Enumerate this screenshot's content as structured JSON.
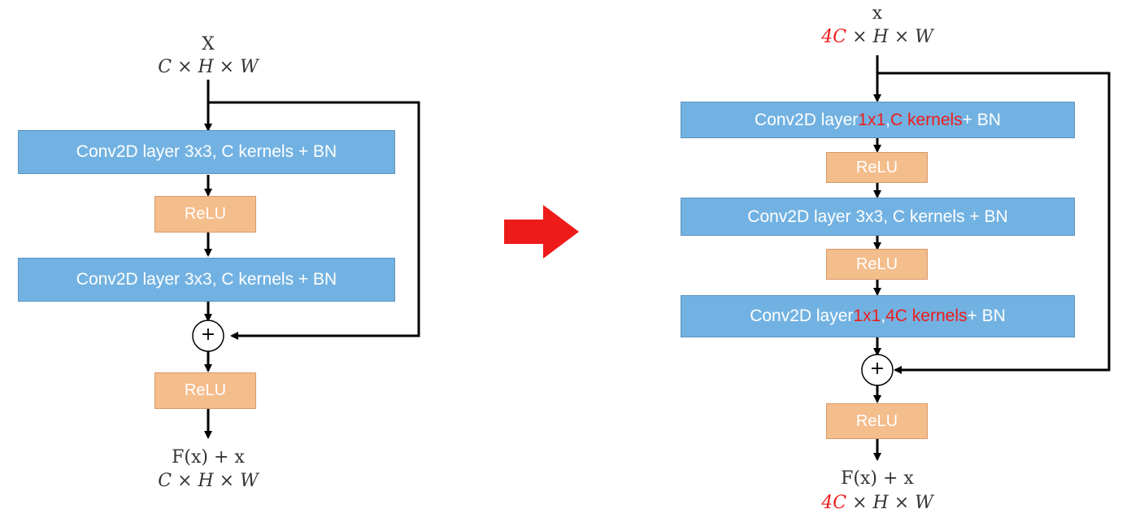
{
  "left": {
    "input_label": "X",
    "input_shape": "C × H × W",
    "conv1": "Conv2D layer 3x3, C kernels + BN",
    "relu1": "ReLU",
    "conv2": "Conv2D layer 3x3, C kernels + BN",
    "add_symbol": "+",
    "relu2": "ReLU",
    "output_label": "F(x) + x",
    "output_shape": "C × H × W"
  },
  "right": {
    "input_label": "x",
    "input_shape_prefix": "4C",
    "input_shape_rest": " × H × W",
    "conv1": {
      "a": "Conv2D layer ",
      "b": "1x1",
      "c": ", ",
      "d": "C kernels",
      "e": " + BN"
    },
    "relu1": "ReLU",
    "conv2": "Conv2D layer 3x3, C kernels + BN",
    "relu2": "ReLU",
    "conv3": {
      "a": "Conv2D layer ",
      "b": "1x1",
      "c": ", ",
      "d": "4C kernels",
      "e": " + BN"
    },
    "add_symbol": "+",
    "relu3": "ReLU",
    "output_label": "F(x) + x",
    "output_shape_prefix": "4C",
    "output_shape_rest": " × H × W"
  },
  "colors": {
    "conv_fill": "#72b2e2",
    "relu_fill": "#f4bd8c",
    "highlight": "#ee1b1b",
    "arrow": "#ee1b1b"
  }
}
